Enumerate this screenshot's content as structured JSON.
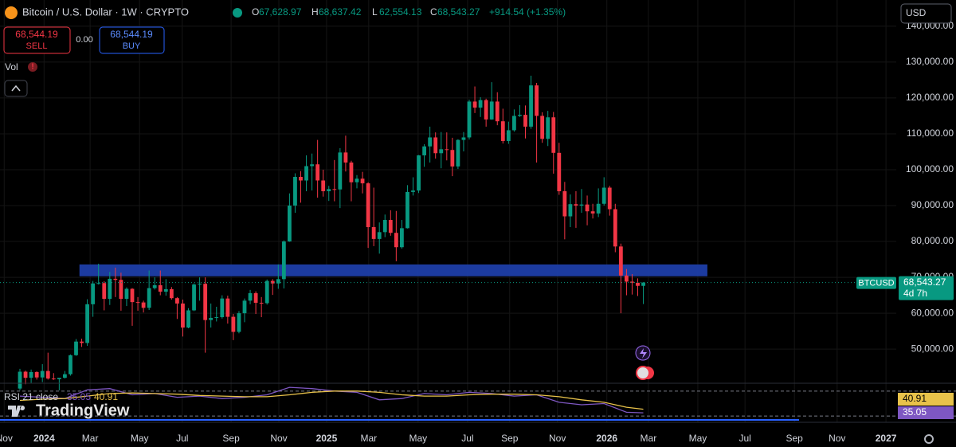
{
  "header": {
    "title": "Bitcoin / U.S. Dollar · 1W · CRYPTO",
    "open_key": "O",
    "high_key": "H",
    "low_key": "L",
    "close_key": "C",
    "change": "+914.54 (+1.35%)"
  },
  "trade": {
    "sell_price": "68,544.19",
    "sell": "SELL",
    "spread": "0.00",
    "buy_price": "68,544.19",
    "buy": "BUY"
  },
  "volume_label": "Vol",
  "currency": "USD",
  "brand": "TradingView",
  "chart_data": {
    "type": "candlestick",
    "grid": true,
    "ylim": [
      40700,
      147300
    ],
    "yticks": [
      {
        "value": 140000,
        "label": "140,000.00"
      },
      {
        "value": 130000,
        "label": "130,000.00"
      },
      {
        "value": 120000,
        "label": "120,000.00"
      },
      {
        "value": 110000,
        "label": "110,000.00"
      },
      {
        "value": 100000,
        "label": "100,000.00"
      },
      {
        "value": 90000,
        "label": "90,000.00"
      },
      {
        "value": 80000,
        "label": "80,000.00"
      },
      {
        "value": 70000,
        "label": "70,000.00"
      },
      {
        "value": 60000,
        "label": "60,000.00"
      },
      {
        "value": 50000,
        "label": "50,000.00"
      }
    ],
    "xticks": [
      {
        "value": -2.8,
        "label": "Nov"
      },
      {
        "value": 4.3,
        "label": "2024"
      },
      {
        "value": 12.5,
        "label": "Mar"
      },
      {
        "value": 21.3,
        "label": "May"
      },
      {
        "value": 28.9,
        "label": "Jul"
      },
      {
        "value": 37.6,
        "label": "Sep"
      },
      {
        "value": 46.1,
        "label": "Nov"
      },
      {
        "value": 54.6,
        "label": "2025"
      },
      {
        "value": 62.1,
        "label": "Mar"
      },
      {
        "value": 70.9,
        "label": "May"
      },
      {
        "value": 79.7,
        "label": "Jul"
      },
      {
        "value": 87.2,
        "label": "Sep"
      },
      {
        "value": 95.7,
        "label": "Nov"
      },
      {
        "value": 104.5,
        "label": "2026"
      },
      {
        "value": 111.9,
        "label": "Mar"
      },
      {
        "value": 120.7,
        "label": "May"
      },
      {
        "value": 129.1,
        "label": "Jul"
      },
      {
        "value": 137.9,
        "label": "Sep"
      },
      {
        "value": 145.5,
        "label": "Nov"
      },
      {
        "value": 154.2,
        "label": "2027"
      }
    ],
    "zone": {
      "low": 70300,
      "high": 73600,
      "start": 10.6,
      "end": 122.4,
      "color": "#1e3ea8"
    },
    "series": [
      {
        "name": "BTCUSD",
        "up_color": "#089981",
        "down_color": "#f23645",
        "countdown": "4d 7h",
        "last_labels": [
          "67,628.97",
          "68,637.42",
          "62,554.13",
          "68,543.27"
        ],
        "ohlc": [
          [
            39000,
            44500,
            38500,
            43700
          ],
          [
            43700,
            44000,
            40200,
            42000
          ],
          [
            42000,
            44300,
            40600,
            43600
          ],
          [
            43600,
            43800,
            41500,
            42100
          ],
          [
            42100,
            45800,
            40800,
            43900
          ],
          [
            43900,
            49000,
            41500,
            41800
          ],
          [
            41800,
            43300,
            41400,
            41600
          ],
          [
            41600,
            41800,
            38500,
            42000
          ],
          [
            42000,
            43900,
            41800,
            43000
          ],
          [
            43000,
            48500,
            42600,
            48300
          ],
          [
            48300,
            52800,
            48100,
            52100
          ],
          [
            52100,
            52900,
            50600,
            51700
          ],
          [
            51700,
            63900,
            50900,
            62500
          ],
          [
            62500,
            69000,
            59000,
            68300
          ],
          [
            68300,
            73800,
            68000,
            68400
          ],
          [
            68400,
            68900,
            60800,
            64000
          ],
          [
            64000,
            71500,
            62300,
            69600
          ],
          [
            69600,
            72700,
            64500,
            69300
          ],
          [
            69300,
            71300,
            60700,
            64000
          ],
          [
            64000,
            67200,
            62000,
            66800
          ],
          [
            66800,
            67000,
            56500,
            63100
          ],
          [
            63100,
            64500,
            60700,
            63000
          ],
          [
            63000,
            63500,
            60200,
            61500
          ],
          [
            61500,
            71900,
            60900,
            67000
          ],
          [
            67000,
            70000,
            66600,
            67800
          ],
          [
            67800,
            71900,
            65000,
            66000
          ],
          [
            66000,
            69500,
            64900,
            66700
          ],
          [
            66700,
            67300,
            63800,
            64200
          ],
          [
            64200,
            64500,
            58400,
            62700
          ],
          [
            62700,
            63800,
            53500,
            56000
          ],
          [
            56000,
            61400,
            55800,
            60800
          ],
          [
            60800,
            68300,
            60600,
            68000
          ],
          [
            68000,
            70000,
            63500,
            68200
          ],
          [
            68200,
            70000,
            49000,
            58100
          ],
          [
            58100,
            62700,
            56000,
            58700
          ],
          [
            58700,
            61800,
            57700,
            58900
          ],
          [
            58900,
            65000,
            58500,
            64100
          ],
          [
            64100,
            64900,
            57100,
            59000
          ],
          [
            59000,
            59800,
            52500,
            54800
          ],
          [
            54800,
            60600,
            54400,
            60000
          ],
          [
            60000,
            64100,
            57500,
            63500
          ],
          [
            63500,
            66500,
            62500,
            65600
          ],
          [
            65600,
            66100,
            59800,
            62900
          ],
          [
            62900,
            64500,
            58900,
            62800
          ],
          [
            62800,
            69400,
            62400,
            69000
          ],
          [
            69000,
            69500,
            65100,
            68300
          ],
          [
            68300,
            73600,
            66800,
            69500
          ],
          [
            69500,
            80300,
            66900,
            80000
          ],
          [
            80000,
            93400,
            79900,
            90000
          ],
          [
            90000,
            99000,
            88000,
            98000
          ],
          [
            98000,
            99600,
            90800,
            97000
          ],
          [
            97000,
            104000,
            94000,
            101000
          ],
          [
            101000,
            104500,
            94200,
            101500
          ],
          [
            101500,
            108300,
            92200,
            97000
          ],
          [
            97000,
            100000,
            92500,
            94000
          ],
          [
            94000,
            95500,
            91300,
            94600
          ],
          [
            94600,
            102700,
            91200,
            94500
          ],
          [
            94500,
            106000,
            89300,
            104800
          ],
          [
            104800,
            109500,
            99500,
            102000
          ],
          [
            102000,
            102500,
            91200,
            96500
          ],
          [
            96500,
            98500,
            94800,
            97500
          ],
          [
            97500,
            99400,
            93400,
            96200
          ],
          [
            96200,
            96500,
            78200,
            84000
          ],
          [
            84000,
            95000,
            78700,
            80700
          ],
          [
            80700,
            85300,
            76600,
            82600
          ],
          [
            82600,
            87500,
            81200,
            86000
          ],
          [
            86000,
            88700,
            81600,
            82400
          ],
          [
            82400,
            88500,
            74500,
            78400
          ],
          [
            78400,
            86000,
            78000,
            83700
          ],
          [
            83700,
            95700,
            83600,
            93800
          ],
          [
            93800,
            97900,
            92800,
            94200
          ],
          [
            94200,
            104100,
            93500,
            104000
          ],
          [
            104000,
            107100,
            100800,
            106500
          ],
          [
            106500,
            112000,
            102000,
            109000
          ],
          [
            109000,
            110400,
            103100,
            104600
          ],
          [
            104600,
            110500,
            100400,
            105700
          ],
          [
            105700,
            110400,
            102600,
            105500
          ],
          [
            105500,
            108900,
            98200,
            100900
          ],
          [
            100900,
            108500,
            100200,
            108300
          ],
          [
            108300,
            110500,
            105100,
            109000
          ],
          [
            109000,
            119500,
            108400,
            119000
          ],
          [
            119000,
            123200,
            115800,
            117300
          ],
          [
            117300,
            120200,
            114700,
            119400
          ],
          [
            119400,
            119800,
            112000,
            114000
          ],
          [
            114000,
            124400,
            113900,
            119000
          ],
          [
            119000,
            121600,
            112400,
            113500
          ],
          [
            113500,
            117000,
            107300,
            108000
          ],
          [
            108000,
            113400,
            107200,
            111000
          ],
          [
            111000,
            116800,
            110600,
            115000
          ],
          [
            115000,
            118000,
            114700,
            115300
          ],
          [
            115300,
            117900,
            108700,
            112000
          ],
          [
            112000,
            126200,
            111400,
            123500
          ],
          [
            123500,
            124200,
            102000,
            115000
          ],
          [
            115000,
            116000,
            107500,
            108600
          ],
          [
            108600,
            116400,
            106600,
            114600
          ],
          [
            114600,
            116100,
            98900,
            104700
          ],
          [
            104700,
            107500,
            93000,
            94000
          ],
          [
            94000,
            96600,
            80600,
            87000
          ],
          [
            87000,
            93100,
            84000,
            90400
          ],
          [
            90400,
            94000,
            83800,
            90000
          ],
          [
            90000,
            94600,
            88000,
            90300
          ],
          [
            90300,
            92800,
            84500,
            88400
          ],
          [
            88400,
            90500,
            86400,
            87800
          ],
          [
            87800,
            94800,
            86800,
            90500
          ],
          [
            90500,
            97900,
            90000,
            95000
          ],
          [
            95000,
            95500,
            87200,
            89000
          ],
          [
            89000,
            90500,
            77000,
            78600
          ],
          [
            78600,
            79400,
            60000,
            70500
          ],
          [
            70500,
            72300,
            65000,
            68800
          ],
          [
            68800,
            70900,
            65200,
            68500
          ],
          [
            68500,
            69700,
            64800,
            67628.73
          ],
          [
            67628.97,
            68637.42,
            62554.13,
            68543.27
          ]
        ]
      }
    ],
    "rsi": {
      "label": "RSI 21 close",
      "ylim": [
        25,
        80
      ],
      "yticks": [
        30,
        70
      ],
      "series": [
        {
          "color": "#7e57c2",
          "value_label": "35.05",
          "x": [
            0,
            4,
            8,
            12,
            16,
            20,
            24,
            28,
            32,
            36,
            40,
            44,
            48,
            52,
            56,
            60,
            64,
            68,
            72,
            76,
            80,
            84,
            88,
            92,
            96,
            100,
            104,
            108,
            111
          ],
          "values": [
            62,
            60,
            58,
            72,
            74,
            64,
            66,
            60,
            62,
            58,
            60,
            64,
            76,
            74,
            70,
            68,
            56,
            58,
            66,
            64,
            68,
            66,
            62,
            64,
            52,
            48,
            50,
            36,
            35.05
          ]
        },
        {
          "color": "#e8c24a",
          "value_label": "40.91",
          "x": [
            0,
            4,
            8,
            12,
            16,
            20,
            24,
            28,
            32,
            36,
            40,
            44,
            48,
            52,
            56,
            60,
            64,
            68,
            72,
            76,
            80,
            84,
            88,
            92,
            96,
            100,
            104,
            108,
            111
          ],
          "values": [
            55,
            57,
            58,
            62,
            66,
            67,
            66,
            65,
            63,
            62,
            61,
            61,
            64,
            68,
            70,
            70,
            68,
            64,
            62,
            62,
            64,
            65,
            65,
            64,
            61,
            56,
            52,
            44,
            40.91
          ]
        }
      ]
    }
  }
}
